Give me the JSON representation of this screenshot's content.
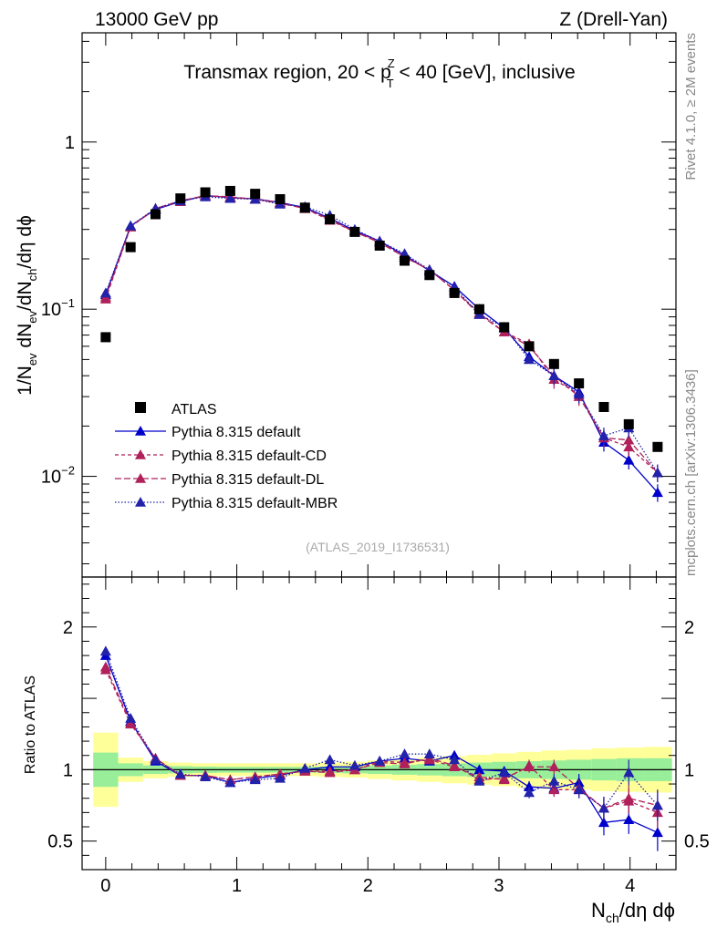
{
  "header": {
    "left": "13000 GeV pp",
    "right": "Z (Drell-Yan)"
  },
  "side_labels": {
    "rivet": "Rivet 4.1.0, ≥ 2M events",
    "mcplots": "mcplots.cern.ch [arXiv:1306.3436]"
  },
  "chart_data": {
    "type": "scatter",
    "title": "Transmax region, 20 < p_T^Z < 40 [GeV], inclusive",
    "title_parts": {
      "a": "Transmax region, 20 < ",
      "p": "p",
      "sup": "Z",
      "sub": "T",
      "b": " < 40 [GeV], inclusive"
    },
    "analysis_id": "(ATLAS_2019_I1736531)",
    "xlabel": {
      "a": "N",
      "sub": "ch",
      "b": "/dη dϕ"
    },
    "ylabel": {
      "a": "1/N",
      "s1": "ev",
      "b": " dN",
      "s2": "ev",
      "c": "/dN",
      "s3": "ch",
      "d": "/dη dϕ"
    },
    "ratio_ylabel": "Ratio to ATLAS",
    "xlim": [
      -0.18,
      4.35
    ],
    "ylim_main": [
      0.0025,
      4.5
    ],
    "yscale_main": "log",
    "ylim_ratio": [
      0.3,
      2.35
    ],
    "x_ticks": [
      0,
      1,
      2,
      3,
      4
    ],
    "x_tick_labels": [
      "0",
      "1",
      "2",
      "3",
      "4"
    ],
    "main_y_ticks": [
      0.01,
      0.1,
      1
    ],
    "main_y_tick_labels": [
      {
        "base": "10",
        "exp": "−2"
      },
      {
        "base": "10",
        "exp": "−1"
      },
      {
        "base": "1",
        "exp": ""
      }
    ],
    "ratio_y_ticks": [
      0.5,
      1,
      2
    ],
    "ratio_y_tick_labels": [
      "0.5",
      "1",
      "2"
    ],
    "legend_position": "middle-left",
    "x": [
      0.0,
      0.19,
      0.38,
      0.57,
      0.76,
      0.95,
      1.14,
      1.33,
      1.52,
      1.71,
      1.9,
      2.09,
      2.28,
      2.47,
      2.66,
      2.85,
      3.04,
      3.23,
      3.42,
      3.61,
      3.8,
      3.99,
      4.21
    ],
    "data": {
      "name": "ATLAS",
      "color": "#000000",
      "values": [
        0.068,
        0.235,
        0.37,
        0.46,
        0.5,
        0.51,
        0.49,
        0.455,
        0.405,
        0.345,
        0.29,
        0.24,
        0.195,
        0.16,
        0.125,
        0.1,
        0.078,
        0.06,
        0.047,
        0.036,
        0.026,
        0.0205,
        0.015
      ],
      "band_inner": [
        0.12,
        0.045,
        0.03,
        0.025,
        0.022,
        0.02,
        0.02,
        0.02,
        0.02,
        0.022,
        0.025,
        0.03,
        0.035,
        0.04,
        0.045,
        0.05,
        0.055,
        0.06,
        0.065,
        0.07,
        0.075,
        0.08,
        0.08
      ],
      "band_outer": [
        0.26,
        0.085,
        0.06,
        0.05,
        0.045,
        0.045,
        0.045,
        0.045,
        0.045,
        0.05,
        0.055,
        0.065,
        0.075,
        0.085,
        0.095,
        0.105,
        0.115,
        0.125,
        0.135,
        0.14,
        0.15,
        0.155,
        0.16
      ]
    },
    "series": [
      {
        "name": "Pythia 8.315 default",
        "color": "#0000cc",
        "dash": "solid",
        "values": [
          0.122,
          0.315,
          0.395,
          0.44,
          0.478,
          0.465,
          0.457,
          0.435,
          0.405,
          0.35,
          0.295,
          0.255,
          0.21,
          0.17,
          0.137,
          0.1,
          0.077,
          0.052,
          0.04,
          0.032,
          0.016,
          0.0125,
          0.008
        ],
        "ratio_values": [
          1.8,
          1.34,
          1.06,
          0.96,
          0.96,
          0.91,
          0.94,
          0.96,
          1.0,
          1.02,
          1.02,
          1.06,
          1.08,
          1.06,
          1.1,
          1.0,
          0.99,
          0.88,
          0.87,
          0.91,
          0.63,
          0.65,
          0.56
        ],
        "ratio_err": [
          0.02,
          0.02,
          0.01,
          0.01,
          0.01,
          0.01,
          0.01,
          0.01,
          0.01,
          0.01,
          0.01,
          0.01,
          0.015,
          0.015,
          0.02,
          0.02,
          0.03,
          0.04,
          0.05,
          0.06,
          0.09,
          0.1,
          0.13
        ]
      },
      {
        "name": "Pythia 8.315 default-CD",
        "color": "#b0205a",
        "dash": "4,3",
        "values": [
          0.115,
          0.31,
          0.4,
          0.44,
          0.48,
          0.465,
          0.455,
          0.435,
          0.4,
          0.34,
          0.29,
          0.255,
          0.205,
          0.172,
          0.13,
          0.095,
          0.073,
          0.062,
          0.038,
          0.031,
          0.017,
          0.015,
          0.0105
        ],
        "ratio_values": [
          1.7,
          1.32,
          1.08,
          0.96,
          0.96,
          0.93,
          0.95,
          0.97,
          0.99,
          0.99,
          1.0,
          1.06,
          1.05,
          1.07,
          1.02,
          0.95,
          0.93,
          1.03,
          0.86,
          0.86,
          0.73,
          0.78,
          0.7
        ],
        "ratio_err": [
          0.02,
          0.02,
          0.01,
          0.01,
          0.01,
          0.01,
          0.01,
          0.01,
          0.01,
          0.01,
          0.01,
          0.01,
          0.015,
          0.015,
          0.02,
          0.02,
          0.03,
          0.04,
          0.05,
          0.06,
          0.08,
          0.09,
          0.11
        ]
      },
      {
        "name": "Pythia 8.315 default-DL",
        "color": "#b0205a",
        "dash": "7,3",
        "values": [
          0.118,
          0.312,
          0.4,
          0.445,
          0.478,
          0.47,
          0.455,
          0.43,
          0.4,
          0.345,
          0.29,
          0.25,
          0.205,
          0.172,
          0.13,
          0.093,
          0.073,
          0.06,
          0.04,
          0.03,
          0.017,
          0.0165,
          0.0105
        ],
        "ratio_values": [
          1.72,
          1.33,
          1.08,
          0.96,
          0.96,
          0.93,
          0.95,
          0.97,
          0.99,
          0.98,
          1.0,
          1.05,
          1.04,
          1.08,
          1.03,
          0.93,
          0.94,
          1.02,
          1.02,
          0.87,
          0.73,
          0.8,
          0.75
        ],
        "ratio_err": [
          0.02,
          0.02,
          0.01,
          0.01,
          0.01,
          0.01,
          0.01,
          0.01,
          0.01,
          0.01,
          0.01,
          0.01,
          0.015,
          0.015,
          0.02,
          0.02,
          0.03,
          0.04,
          0.05,
          0.06,
          0.08,
          0.09,
          0.11
        ]
      },
      {
        "name": "Pythia 8.315 default-MBR",
        "color": "#2222aa",
        "dash": "1.5,2",
        "values": [
          0.125,
          0.315,
          0.4,
          0.445,
          0.47,
          0.46,
          0.455,
          0.425,
          0.41,
          0.365,
          0.3,
          0.255,
          0.215,
          0.172,
          0.135,
          0.093,
          0.078,
          0.05,
          0.04,
          0.031,
          0.0175,
          0.0195,
          0.0105
        ],
        "ratio_values": [
          1.83,
          1.36,
          1.07,
          0.97,
          0.95,
          0.91,
          0.93,
          0.94,
          1.01,
          1.07,
          1.03,
          1.06,
          1.11,
          1.11,
          1.07,
          0.92,
          0.98,
          0.84,
          0.92,
          0.86,
          0.73,
          0.98,
          0.75
        ],
        "ratio_err": [
          0.02,
          0.02,
          0.01,
          0.01,
          0.01,
          0.01,
          0.01,
          0.01,
          0.01,
          0.01,
          0.01,
          0.01,
          0.015,
          0.015,
          0.02,
          0.02,
          0.03,
          0.04,
          0.05,
          0.06,
          0.08,
          0.09,
          0.11
        ]
      }
    ]
  }
}
